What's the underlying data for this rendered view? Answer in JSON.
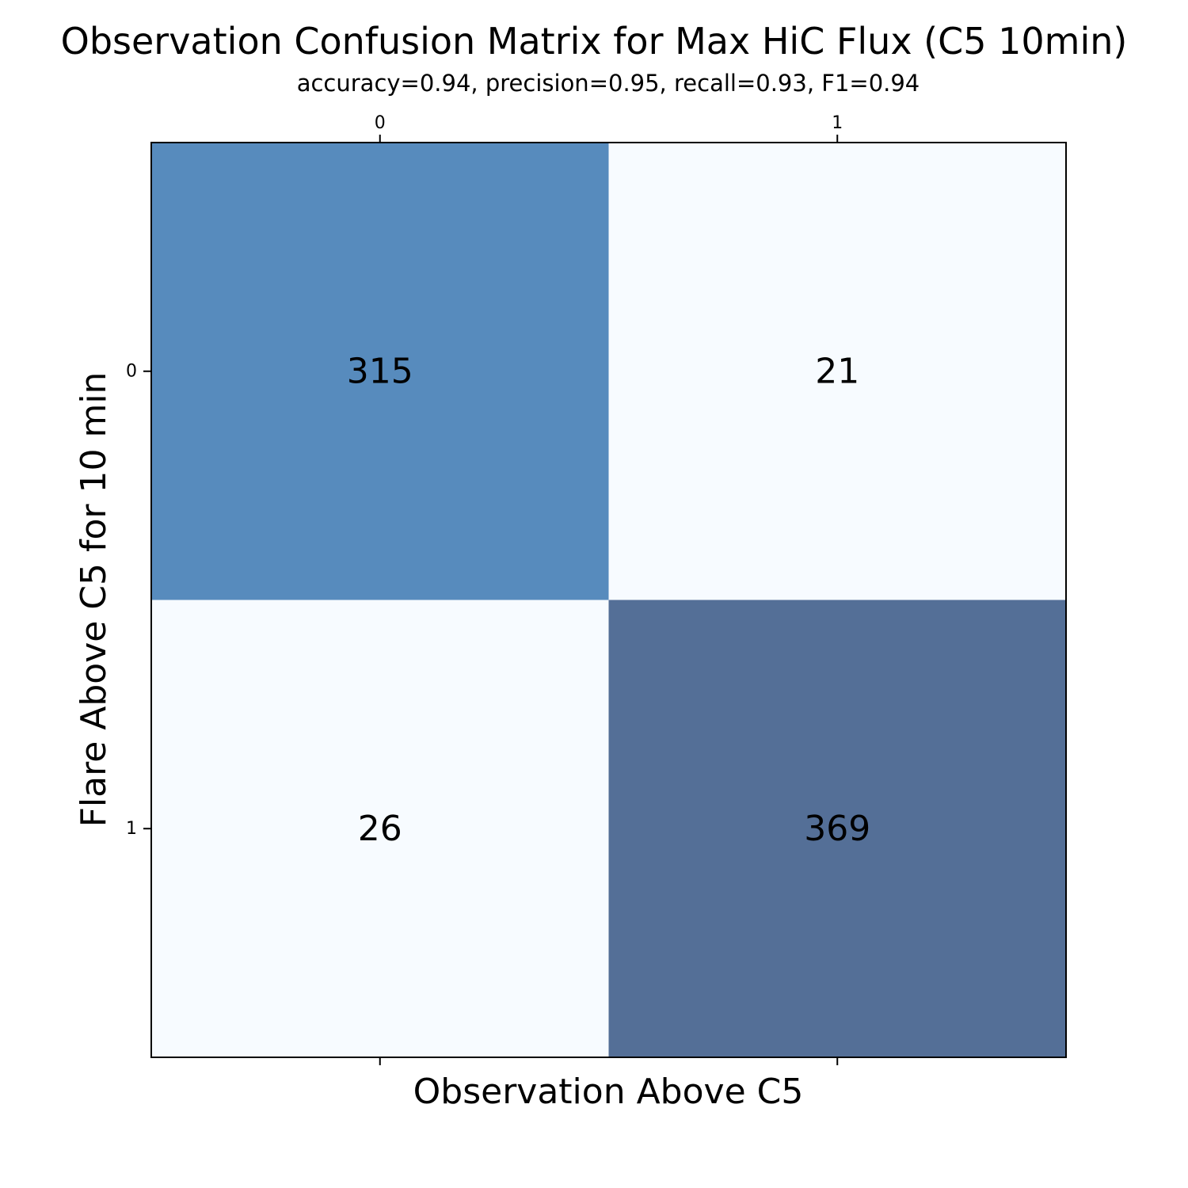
{
  "chart_data": {
    "type": "heatmap",
    "title": "Observation Confusion Matrix for Max HiC Flux (C5 10min)",
    "subtitle": "accuracy=0.94, precision=0.95, recall=0.93, F1=0.94",
    "xlabel": "Observation Above C5",
    "ylabel": "Flare Above C5 for 10 min",
    "x_tick_labels": [
      "0",
      "1"
    ],
    "y_tick_labels": [
      "0",
      "1"
    ],
    "x_ticks_position": "top-and-bottom",
    "matrix": [
      [
        315,
        21
      ],
      [
        26,
        369
      ]
    ],
    "cell_labels": [
      [
        "315",
        "21"
      ],
      [
        "26",
        "369"
      ]
    ],
    "cell_colors": [
      [
        "#578bbd",
        "#f7fbff"
      ],
      [
        "#f7fbff",
        "#546f97"
      ]
    ],
    "grid": false,
    "legend": "none"
  }
}
